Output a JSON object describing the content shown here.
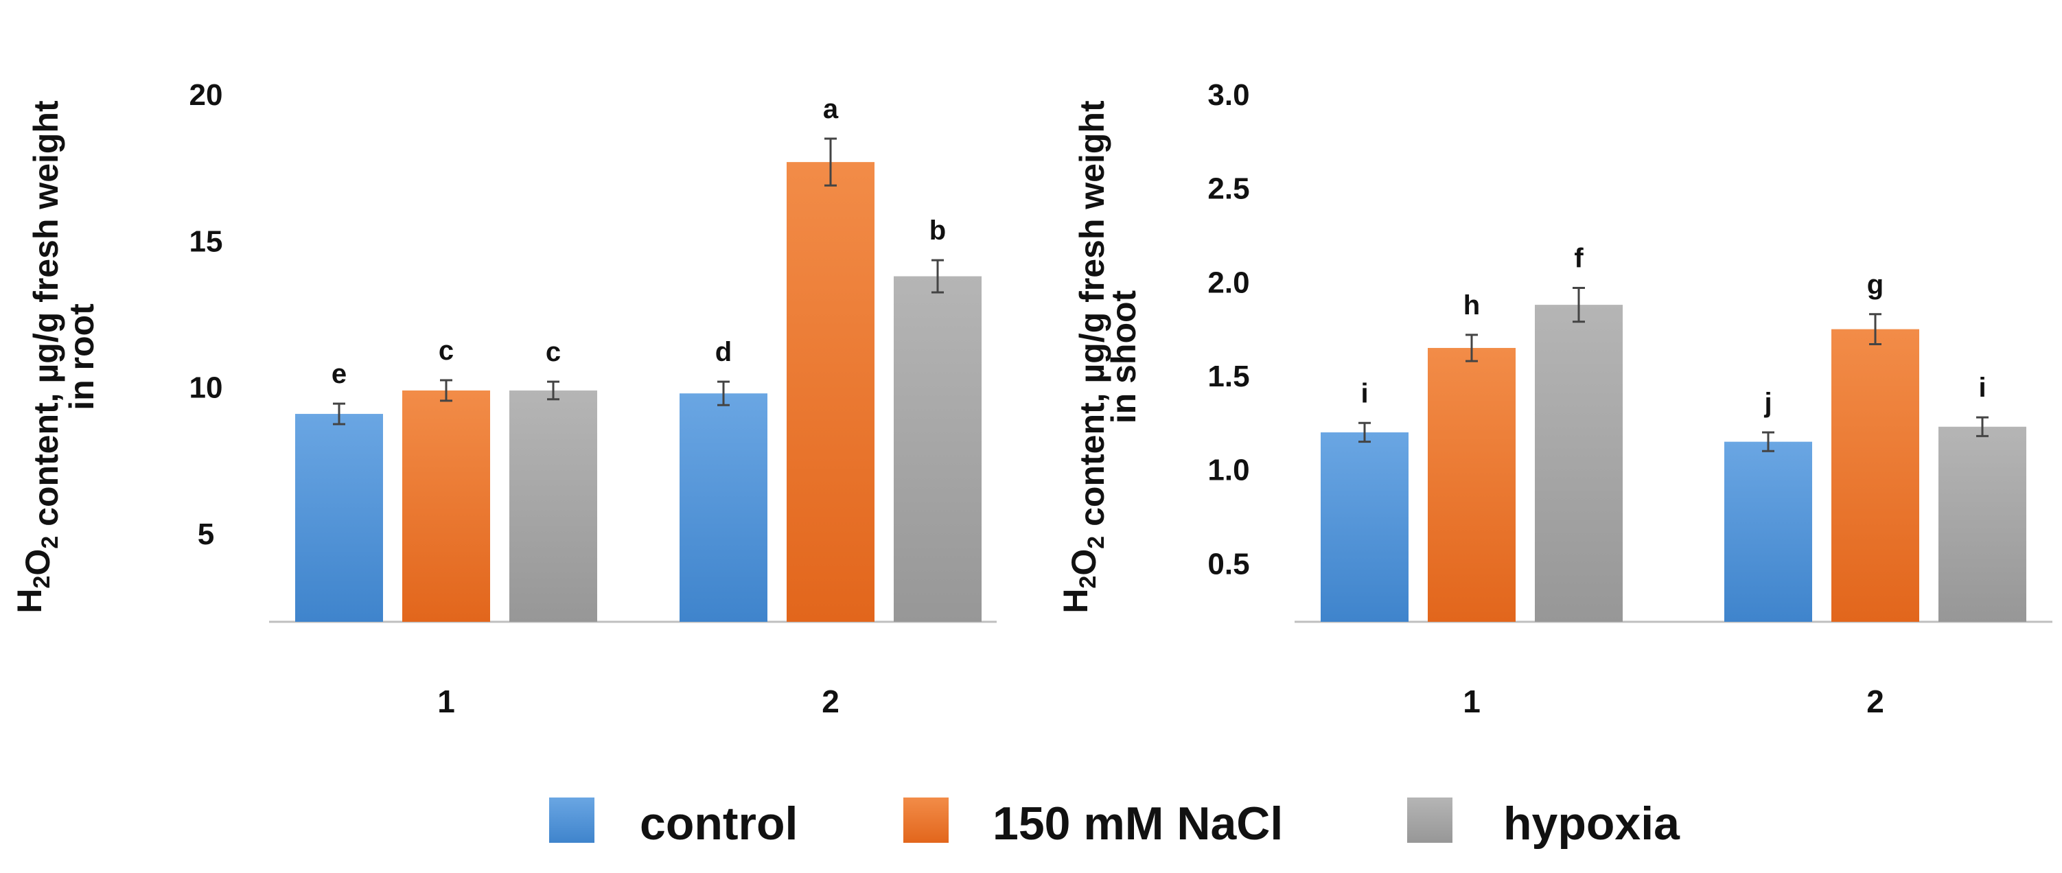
{
  "colors": {
    "control": "#4f92d6",
    "nacl": "#ed7a2e",
    "hypoxia": "#a5a5a5",
    "axis": "#bfbfbf",
    "error": "#444444"
  },
  "legend": [
    "control",
    "150 mM NaCl",
    "hypoxia"
  ],
  "chart_data": [
    {
      "type": "bar",
      "ylabel": {
        "prefix": "H",
        "sub1": "2",
        "mid": "O",
        "sub2": "2",
        "suffix": " content, µg/g fresh weight",
        "line2": "in root"
      },
      "categories": [
        "1",
        "2"
      ],
      "ylim": [
        2,
        20
      ],
      "yticks": [
        "5",
        "10",
        "15",
        "20"
      ],
      "ytick_values": [
        5,
        10,
        15,
        20
      ],
      "series": [
        {
          "name": "control",
          "values": [
            9.1,
            9.8
          ],
          "errors": [
            0.35,
            0.4
          ],
          "letters": [
            "e",
            "d"
          ]
        },
        {
          "name": "150 mM NaCl",
          "values": [
            9.9,
            17.7
          ],
          "errors": [
            0.35,
            0.8
          ],
          "letters": [
            "c",
            "a"
          ]
        },
        {
          "name": "hypoxia",
          "values": [
            9.9,
            13.8
          ],
          "errors": [
            0.3,
            0.55
          ],
          "letters": [
            "c",
            "b"
          ]
        }
      ],
      "grid": false
    },
    {
      "type": "bar",
      "ylabel": {
        "prefix": "H",
        "sub1": "2",
        "mid": "O",
        "sub2": "2",
        "suffix": " content, µg/g fresh weight",
        "line2": "in shoot"
      },
      "categories": [
        "1",
        "2"
      ],
      "ylim": [
        0.19,
        3.0
      ],
      "yticks": [
        "0.5",
        "1.0",
        "1.5",
        "2.0",
        "2.5",
        "3.0"
      ],
      "ytick_values": [
        0.5,
        1.0,
        1.5,
        2.0,
        2.5,
        3.0
      ],
      "series": [
        {
          "name": "control",
          "values": [
            1.2,
            1.15
          ],
          "errors": [
            0.05,
            0.05
          ],
          "letters": [
            "i",
            "j"
          ]
        },
        {
          "name": "150 mM NaCl",
          "values": [
            1.65,
            1.75
          ],
          "errors": [
            0.07,
            0.08
          ],
          "letters": [
            "h",
            "g"
          ]
        },
        {
          "name": "hypoxia",
          "values": [
            1.88,
            1.23
          ],
          "errors": [
            0.09,
            0.05
          ],
          "letters": [
            "f",
            "i"
          ]
        }
      ],
      "grid": false
    }
  ]
}
